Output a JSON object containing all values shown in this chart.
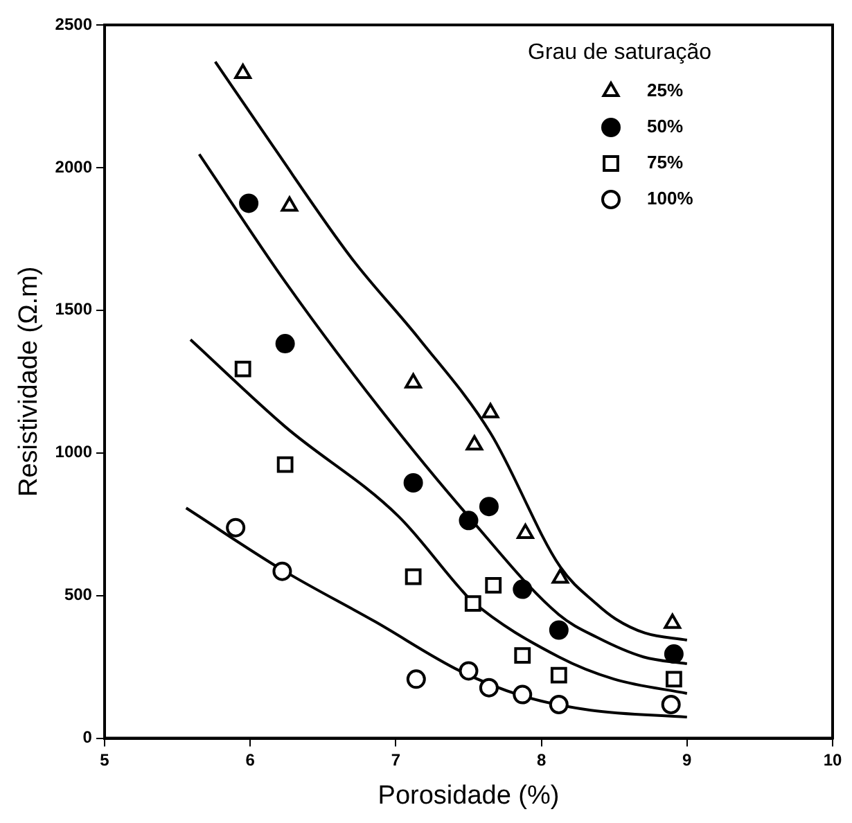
{
  "chart_data": {
    "type": "scatter",
    "xlabel": "Porosidade (%)",
    "ylabel": "Resistividade (Ω.m)",
    "legend_title": "Grau de saturação",
    "legend": "top right",
    "grid": false,
    "xlim": [
      5,
      10
    ],
    "xticks": [
      5,
      6,
      7,
      8,
      9,
      10
    ],
    "ylim": [
      0,
      2500
    ],
    "yticks": [
      0,
      500,
      1000,
      1500,
      2000,
      2500
    ],
    "series": [
      {
        "name": "25%",
        "marker": "triangle",
        "color": "#000000",
        "x": [
          5.95,
          6.27,
          7.12,
          7.54,
          7.65,
          7.89,
          8.13,
          8.9
        ],
        "values": [
          2330,
          1865,
          1245,
          1028,
          1141,
          718,
          561,
          403
        ]
      },
      {
        "name": "50%",
        "marker": "circle",
        "color": "#000000",
        "colors": [
          "#000000",
          "#000000",
          "#000000",
          "#000000",
          "#000000",
          "#000000",
          "#000000",
          "#000000"
        ],
        "x": [
          5.99,
          6.24,
          7.12,
          7.5,
          7.64,
          7.87,
          8.12,
          8.91
        ],
        "values": [
          1875,
          1383,
          895,
          763,
          812,
          522,
          379,
          295
        ]
      },
      {
        "name": "75%",
        "marker": "square",
        "color": "#000000",
        "x": [
          5.95,
          6.24,
          7.12,
          7.53,
          7.67,
          7.87,
          8.12,
          8.91
        ],
        "values": [
          1294,
          959,
          566,
          472,
          536,
          290,
          221,
          207
        ]
      },
      {
        "name": "100%",
        "marker": "circle",
        "color": "#000000",
        "x": [
          5.9,
          6.22,
          7.14,
          7.5,
          7.64,
          7.87,
          8.12,
          8.89
        ],
        "values": [
          738,
          585,
          207,
          236,
          177,
          153,
          118,
          118
        ]
      },
      {
        "type": "line",
        "marker": "none",
        "color": "#000000",
        "x": [
          5.76,
          6.15,
          6.7,
          7.16,
          7.65,
          8.13,
          8.38,
          8.51,
          8.71,
          9.0
        ],
        "values": [
          2371,
          2080,
          1680,
          1400,
          1070,
          600,
          470,
          418,
          369,
          344
        ]
      },
      {
        "type": "line",
        "marker": "none",
        "color": "#000000",
        "x": [
          5.65,
          6.24,
          6.89,
          7.5,
          8.12,
          8.38,
          8.7,
          9.0
        ],
        "values": [
          2047,
          1600,
          1156,
          777,
          433,
          354,
          285,
          261
        ]
      },
      {
        "type": "line",
        "marker": "none",
        "color": "#000000",
        "x": [
          5.59,
          6.24,
          7.02,
          7.44,
          7.52,
          8.12,
          8.5,
          9.0
        ],
        "values": [
          1397,
          1092,
          777,
          526,
          482,
          285,
          207,
          157
        ]
      },
      {
        "type": "line",
        "marker": "none",
        "color": "#000000",
        "x": [
          5.56,
          6.22,
          6.86,
          7.44,
          7.87,
          8.34,
          9.0
        ],
        "values": [
          807,
          590,
          408,
          236,
          148,
          98,
          74
        ]
      }
    ]
  }
}
